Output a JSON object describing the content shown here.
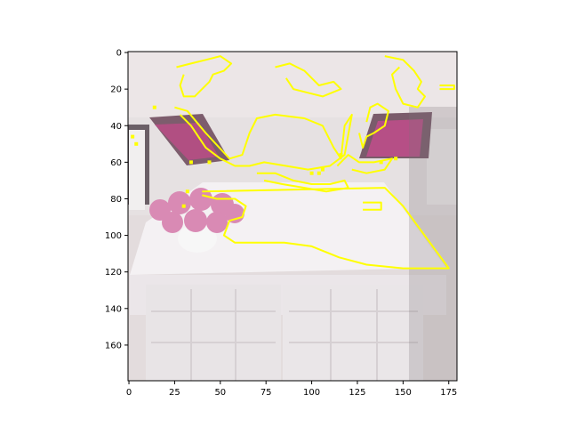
{
  "chart_data": {
    "type": "heatmap",
    "title": "",
    "xlabel": "",
    "ylabel": "",
    "xlim": [
      -0.5,
      179.5
    ],
    "ylim": [
      179.5,
      -0.5
    ],
    "x_ticks": [
      0,
      25,
      50,
      75,
      100,
      125,
      150,
      175
    ],
    "y_ticks": [
      0,
      20,
      40,
      60,
      80,
      100,
      120,
      140,
      160
    ],
    "image": {
      "description": "photo",
      "contents": [
        "white sofa",
        "pink cushions",
        "white coffee table",
        "vase of pink roses",
        "two white tufted ottomans"
      ]
    },
    "overlay": {
      "color": "#ffff00",
      "contours": [
        {
          "name": "table-top",
          "points": [
            [
              40,
              76
            ],
            [
              140,
              74
            ],
            [
              150,
              84
            ],
            [
              175,
              118
            ],
            [
              150,
              118
            ],
            [
              130,
              116
            ],
            [
              115,
              112
            ],
            [
              100,
              106
            ],
            [
              85,
              104
            ],
            [
              70,
              104
            ],
            [
              58,
              104
            ],
            [
              52,
              100
            ],
            [
              55,
              92
            ],
            [
              62,
              90
            ],
            [
              64,
              84
            ],
            [
              58,
              80
            ],
            [
              48,
              80
            ],
            [
              40,
              78
            ]
          ]
        },
        {
          "name": "table-notch",
          "points": [
            [
              128,
              82
            ],
            [
              138,
              82
            ],
            [
              138,
              86
            ],
            [
              128,
              86
            ]
          ]
        },
        {
          "name": "lamp",
          "points": [
            [
              25,
              30
            ],
            [
              32,
              32
            ],
            [
              42,
              44
            ],
            [
              55,
              58
            ],
            [
              62,
              56
            ],
            [
              66,
              44
            ],
            [
              70,
              36
            ],
            [
              80,
              34
            ],
            [
              96,
              36
            ],
            [
              106,
              40
            ],
            [
              112,
              52
            ],
            [
              116,
              58
            ],
            [
              118,
              40
            ],
            [
              122,
              34
            ],
            [
              118,
              56
            ],
            [
              110,
              62
            ],
            [
              98,
              64
            ],
            [
              86,
              62
            ],
            [
              74,
              60
            ],
            [
              66,
              62
            ],
            [
              58,
              62
            ],
            [
              50,
              58
            ],
            [
              42,
              52
            ],
            [
              34,
              40
            ],
            [
              28,
              34
            ]
          ]
        },
        {
          "name": "top-left-cluster",
          "points": [
            [
              26,
              8
            ],
            [
              34,
              6
            ],
            [
              42,
              4
            ],
            [
              50,
              2
            ],
            [
              56,
              6
            ],
            [
              52,
              10
            ],
            [
              46,
              12
            ],
            [
              44,
              16
            ],
            [
              40,
              20
            ],
            [
              36,
              24
            ],
            [
              30,
              24
            ],
            [
              28,
              18
            ],
            [
              30,
              12
            ]
          ]
        },
        {
          "name": "top-middle-cluster",
          "points": [
            [
              80,
              8
            ],
            [
              88,
              6
            ],
            [
              96,
              10
            ],
            [
              100,
              14
            ],
            [
              104,
              18
            ],
            [
              112,
              16
            ],
            [
              116,
              20
            ],
            [
              106,
              24
            ],
            [
              98,
              22
            ],
            [
              90,
              20
            ],
            [
              86,
              14
            ]
          ]
        },
        {
          "name": "top-right-cluster",
          "points": [
            [
              140,
              2
            ],
            [
              150,
              4
            ],
            [
              156,
              10
            ],
            [
              160,
              16
            ],
            [
              158,
              20
            ],
            [
              162,
              24
            ],
            [
              158,
              30
            ],
            [
              150,
              28
            ],
            [
              146,
              20
            ],
            [
              144,
              12
            ],
            [
              148,
              8
            ]
          ]
        },
        {
          "name": "right-small",
          "points": [
            [
              170,
              18
            ],
            [
              178,
              18
            ],
            [
              178,
              20
            ],
            [
              170,
              20
            ]
          ]
        },
        {
          "name": "middle-edges",
          "points": [
            [
              114,
              62
            ],
            [
              120,
              56
            ],
            [
              126,
              60
            ],
            [
              134,
              60
            ],
            [
              144,
              58
            ],
            [
              140,
              64
            ],
            [
              130,
              66
            ],
            [
              122,
              64
            ]
          ]
        },
        {
          "name": "cushion-right",
          "points": [
            [
              130,
              38
            ],
            [
              132,
              30
            ],
            [
              136,
              28
            ],
            [
              142,
              32
            ],
            [
              140,
              40
            ],
            [
              134,
              44
            ],
            [
              130,
              46
            ],
            [
              128,
              52
            ],
            [
              126,
              44
            ]
          ]
        },
        {
          "name": "lower-edge",
          "points": [
            [
              70,
              66
            ],
            [
              80,
              66
            ],
            [
              90,
              70
            ],
            [
              100,
              72
            ],
            [
              110,
              72
            ],
            [
              118,
              70
            ],
            [
              120,
              74
            ],
            [
              108,
              76
            ],
            [
              96,
              74
            ],
            [
              84,
              72
            ],
            [
              74,
              70
            ]
          ]
        }
      ],
      "dots": [
        [
          2,
          46
        ],
        [
          4,
          50
        ],
        [
          14,
          30
        ],
        [
          34,
          60
        ],
        [
          44,
          60
        ],
        [
          116,
          56
        ],
        [
          138,
          60
        ],
        [
          146,
          58
        ],
        [
          30,
          84
        ],
        [
          32,
          76
        ],
        [
          100,
          66
        ],
        [
          104,
          66
        ],
        [
          106,
          64
        ]
      ]
    }
  }
}
